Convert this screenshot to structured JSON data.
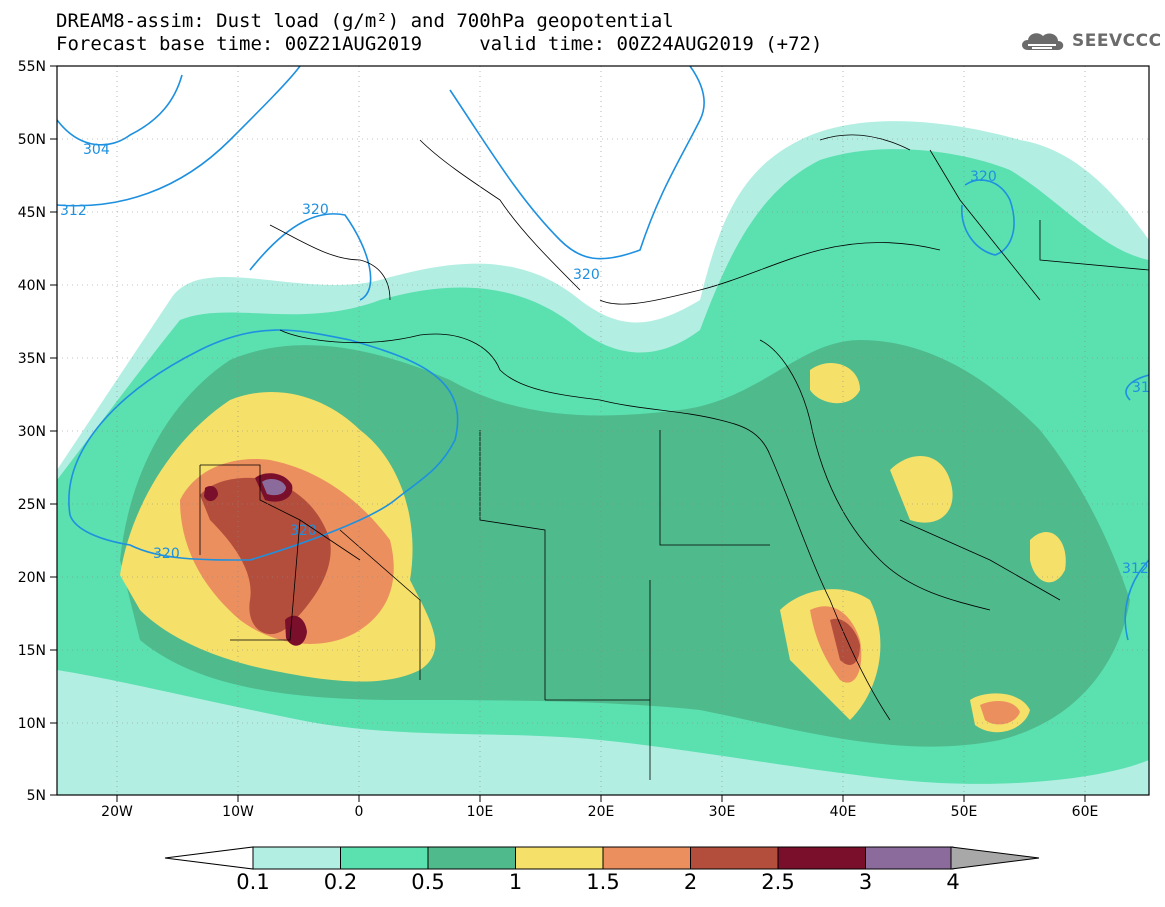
{
  "title_line1": "DREAM8-assim: Dust load (g/m²) and 700hPa geopotential",
  "title_line2": "Forecast base time: 00Z21AUG2019     valid time: 00Z24AUG2019 (+72)",
  "logo_text": "SEEVCCC",
  "lat_labels": [
    "55N",
    "50N",
    "45N",
    "40N",
    "35N",
    "30N",
    "25N",
    "20N",
    "15N",
    "10N",
    "5N"
  ],
  "lon_labels": [
    "20W",
    "10W",
    "0",
    "10E",
    "20E",
    "30E",
    "40E",
    "50E",
    "60E"
  ],
  "contour_labels": [
    "304",
    "312",
    "320",
    "320",
    "320",
    "320",
    "320",
    "312",
    "312",
    "31"
  ],
  "colorbar": {
    "levels": [
      "0.1",
      "0.2",
      "0.5",
      "1",
      "1.5",
      "2",
      "2.5",
      "3",
      "4"
    ],
    "colors": [
      "#b2efe2",
      "#5be0b0",
      "#4fba8c",
      "#f5e06a",
      "#ec8f5e",
      "#b44e3c",
      "#7a0f2c",
      "#8b6b9c",
      "#a8a8a8"
    ]
  },
  "colors": {
    "land_bg": "#ffffff",
    "contour_line": "#1e90e0",
    "border_line": "#000000"
  }
}
